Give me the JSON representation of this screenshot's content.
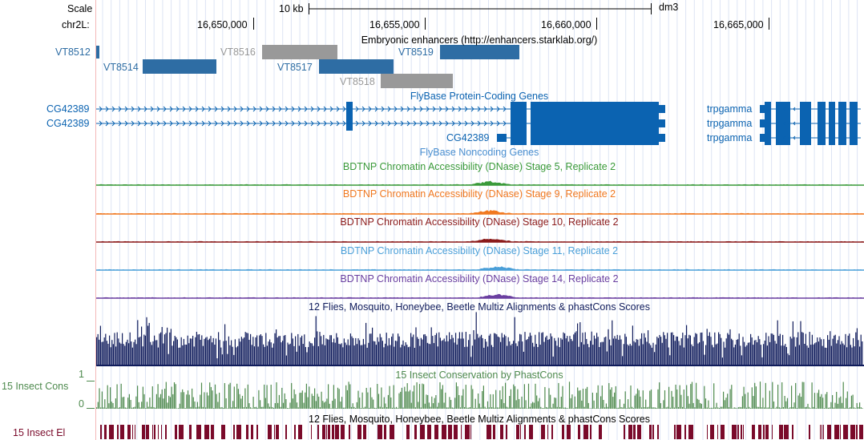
{
  "ruler": {
    "scale_label": "Scale",
    "scale_bar_text": "10 kb",
    "assembly": "dm3",
    "chrom_label": "chr2L:",
    "positions": [
      "16,650,000",
      "16,655,000",
      "16,660,000",
      "16,665,000"
    ]
  },
  "colors": {
    "enhancer_blue": "#2e6da4",
    "enhancer_gray": "#999999",
    "gene_blue": "#0b63b1",
    "stage5": "#3a9a3a",
    "stage9": "#f07820",
    "stage10": "#8b1a1a",
    "stage11": "#4a9fd8",
    "stage14": "#6a3fa0",
    "multiz": "#101c5c",
    "phastcons": "#4e8a4e",
    "elements": "#7a0a2a"
  },
  "tracks": {
    "enhancers": {
      "title": "Embryonic enhancers (http://enhancers.starklab.org/)",
      "items": [
        {
          "label": "VT8512"
        },
        {
          "label": "VT8514"
        },
        {
          "label": "VT8516"
        },
        {
          "label": "VT8517"
        },
        {
          "label": "VT8519"
        },
        {
          "label": "VT8518"
        }
      ]
    },
    "flybase_coding": {
      "title": "FlyBase Protein-Coding Genes",
      "genes": [
        {
          "label": "CG42389"
        },
        {
          "label": "CG42389"
        },
        {
          "label": "CG42389"
        },
        {
          "label": "trpgamma"
        },
        {
          "label": "trpgamma"
        },
        {
          "label": "trpgamma"
        }
      ]
    },
    "flybase_noncoding": {
      "title": "FlyBase Noncoding Genes"
    },
    "dnase_stage5": {
      "title": "BDTNP Chromatin Accessibility (DNase) Stage 5, Replicate 2"
    },
    "dnase_stage9": {
      "title": "BDTNP Chromatin Accessibility (DNase) Stage 9, Replicate 2"
    },
    "dnase_stage10": {
      "title": "BDTNP Chromatin Accessibility (DNase) Stage 10, Replicate 2"
    },
    "dnase_stage11": {
      "title": "BDTNP Chromatin Accessibility (DNase) Stage 11, Replicate 2"
    },
    "dnase_stage14": {
      "title": "BDTNP Chromatin Accessibility (DNase) Stage 14, Replicate 2"
    },
    "multiz": {
      "title": "12 Flies, Mosquito, Honeybee, Beetle Multiz Alignments & phastCons Scores"
    },
    "insect_cons": {
      "title": "15 Insect Conservation by PhastCons",
      "side_label": "15 Insect Cons",
      "axis_max": "1",
      "axis_min": "0"
    },
    "insect_elements": {
      "title": "12 Flies, Mosquito, Honeybee, Beetle Multiz Alignments & phastCons Scores",
      "side_label": "15 Insect El"
    }
  }
}
